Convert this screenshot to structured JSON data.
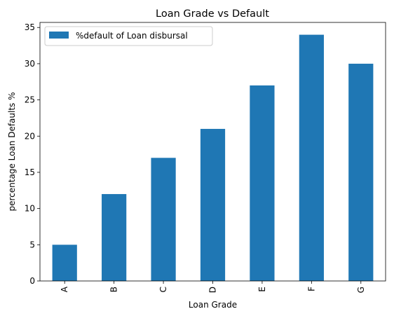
{
  "chart_data": {
    "type": "bar",
    "title": "Loan Grade vs Default",
    "xlabel": "Loan Grade",
    "ylabel": "percentage Loan Defaults %",
    "categories": [
      "A",
      "B",
      "C",
      "D",
      "E",
      "F",
      "G"
    ],
    "series": [
      {
        "name": "%default of Loan disbursal",
        "values": [
          5,
          12,
          17,
          21,
          27,
          34,
          30
        ],
        "color": "#1f77b4"
      }
    ],
    "ylim": [
      0,
      35.7
    ],
    "yticks": [
      0,
      5,
      10,
      15,
      20,
      25,
      30,
      35
    ],
    "grid": false,
    "legend_position": "top-left",
    "x_tick_rotation": 90
  }
}
